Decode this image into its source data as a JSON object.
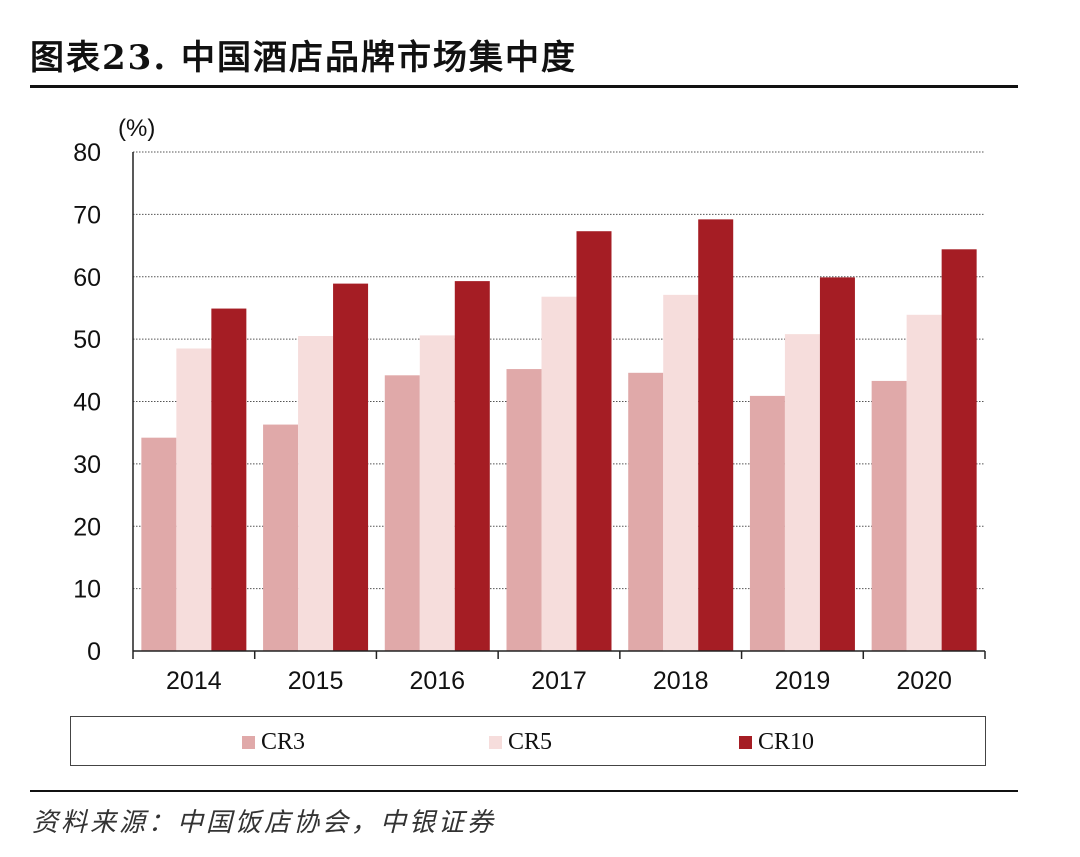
{
  "title": "图表23. 中国酒店品牌市场集中度",
  "unit_label": "(%)",
  "source": "资料来源：中国饭店协会，中银证券",
  "colors": {
    "CR3": "#e0a9a9",
    "CR5": "#f6dddc",
    "CR10": "#a51d24"
  },
  "chart_data": {
    "type": "bar",
    "title": "中国酒店品牌市场集中度",
    "ylabel": "(%)",
    "xlabel": "",
    "ylim": [
      0,
      80
    ],
    "yticks": [
      0,
      10,
      20,
      30,
      40,
      50,
      60,
      70,
      80
    ],
    "grid": true,
    "legend_position": "bottom",
    "categories": [
      "2014",
      "2015",
      "2016",
      "2017",
      "2018",
      "2019",
      "2020"
    ],
    "series": [
      {
        "name": "CR3",
        "values": [
          34.2,
          36.3,
          44.2,
          45.2,
          44.6,
          40.9,
          43.3
        ]
      },
      {
        "name": "CR5",
        "values": [
          48.5,
          50.5,
          50.6,
          56.8,
          57.1,
          50.8,
          53.9
        ]
      },
      {
        "name": "CR10",
        "values": [
          54.9,
          58.9,
          59.3,
          67.3,
          69.2,
          59.9,
          64.4
        ]
      }
    ]
  }
}
